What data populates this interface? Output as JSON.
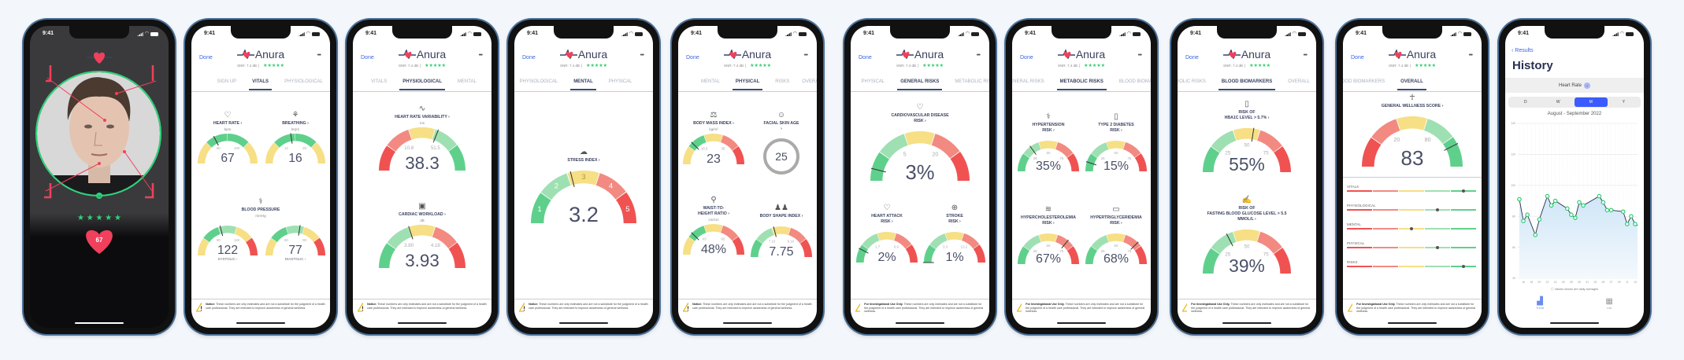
{
  "status_time": "9:41",
  "palette": {
    "red": "#f05252",
    "lightred": "#f28a82",
    "yellow": "#f6df85",
    "lightgreen": "#9fe0b2",
    "green": "#5fd08c",
    "accent": "#3b63e0",
    "ring": "#2ed47a",
    "heart": "#f0405c"
  },
  "scan": {
    "stars": "★ ★ ★ ★ ★",
    "heart_rate": "67",
    "progress": "15"
  },
  "header": {
    "done": "Done",
    "brand": "Anura",
    "snr": "SNR: 7.4 dB",
    "separator": "|",
    "stars": "★★★★★",
    "more": "•••"
  },
  "notices": {
    "notice": {
      "bold": "Notice:",
      "text": " These numbers are only estimates and are not a substitute for the judgment of a health care professional. They are intended to improve awareness of general wellness."
    },
    "investigational": {
      "bold": "For Investigational Use Only.",
      "text": " These numbers are only estimates and are not a substitute for the judgment of a health care professional. They are intended to improve awareness of general wellness."
    }
  },
  "screens": [
    {
      "tabs": [
        "SIGN UP",
        "VITALS",
        "PHYSIOLOGICAL"
      ],
      "active": 1,
      "notice": "notice",
      "groups": [
        {
          "icon": "stethoscope-icon",
          "glyph": "⚕",
          "title": "BLOOD PRESSURE",
          "unit": "mmHg"
        }
      ],
      "gauges": [
        {
          "icon": "heart-icon",
          "glyph": "♡",
          "title": "HEART RATE ›",
          "unit": "bpm",
          "value": "67",
          "ticks": [
            "60",
            "100"
          ],
          "level": 0.35,
          "colors": [
            "yellow",
            "green",
            "green",
            "yellow"
          ]
        },
        {
          "icon": "lungs-icon",
          "glyph": "⚘",
          "title": "BREATHING ›",
          "unit": "brpm",
          "value": "16",
          "ticks": [
            "12",
            "20"
          ],
          "level": 0.45,
          "colors": [
            "yellow",
            "green",
            "green",
            "yellow"
          ]
        },
        {
          "value": "122",
          "sublabel": "SYSTOLIC ›",
          "ticks": [
            "90",
            "140"
          ],
          "level": 0.42,
          "colors": [
            "yellow",
            "green",
            "lightgreen",
            "yellow",
            "red"
          ]
        },
        {
          "value": "77",
          "sublabel": "DIASTOLIC ›",
          "ticks": [
            "60",
            "90"
          ],
          "level": 0.55,
          "colors": [
            "yellow",
            "green",
            "lightgreen",
            "yellow",
            "red"
          ]
        }
      ]
    },
    {
      "tabs": [
        "VITALS",
        "PHYSIOLOGICAL",
        "MENTAL"
      ],
      "active": 1,
      "notice": "notice",
      "gauges": [
        {
          "icon": "hrv-icon",
          "glyph": "∿",
          "title": "HEART RATE VARIABILITY ›",
          "unit": "ms",
          "value": "38.3",
          "ticks": [
            "10.8",
            "51.5"
          ],
          "level": 0.62,
          "colors": [
            "red",
            "lightred",
            "yellow",
            "lightgreen",
            "green"
          ]
        },
        {
          "icon": "cardiac-workload-icon",
          "glyph": "▣",
          "title": "CARDIAC WORKLOAD ›",
          "unit": "dB",
          "value": "3.93",
          "ticks": [
            "3.80",
            "4.18"
          ],
          "level": 0.4,
          "colors": [
            "green",
            "lightgreen",
            "yellow",
            "lightred",
            "red"
          ]
        }
      ]
    },
    {
      "tabs": [
        "PHYSIOLOGICAL",
        "MENTAL",
        "PHYSICAL"
      ],
      "active": 1,
      "notice": "notice",
      "gauges": [
        {
          "icon": "brain-icon",
          "glyph": "☁",
          "title": "STRESS INDEX ›",
          "value": "3.2",
          "segment_labels": [
            "1",
            "2",
            "3",
            "4",
            "5"
          ],
          "level": 0.42,
          "colors": [
            "green",
            "lightgreen",
            "yellow",
            "lightred",
            "red"
          ]
        }
      ]
    },
    {
      "tabs": [
        "MENTAL",
        "PHYSICAL",
        "RISKS",
        "OVERALL"
      ],
      "active": 1,
      "notice": "notice",
      "skin_age": {
        "icon": "face-icon",
        "glyph": "☺",
        "title": "FACIAL SKIN AGE ›",
        "value": "25"
      },
      "gauges": [
        {
          "icon": "scale-icon",
          "glyph": "⚖",
          "title": "BODY MASS INDEX ›",
          "unit": "kg/m²",
          "value": "23",
          "ticks": [
            "18.5",
            "35"
          ],
          "level": 0.25,
          "colors": [
            "yellow",
            "green",
            "yellow",
            "lightred",
            "red"
          ]
        },
        {
          "icon": "waist-icon",
          "glyph": "⚲",
          "title": "WAIST-TO-\nHEIGHT RATIO ›",
          "unit": "cm/cm",
          "value": "48%",
          "ticks": [
            "43",
            "63"
          ],
          "level": 0.25,
          "colors": [
            "yellow",
            "green",
            "yellow",
            "lightred",
            "red"
          ]
        },
        {
          "icon": "body-shape-icon",
          "glyph": "♟♟",
          "title": "BODY SHAPE INDEX ›",
          "value": "7.75",
          "ticks": [
            "7.10",
            "9.10"
          ],
          "level": 0.42,
          "colors": [
            "green",
            "lightgreen",
            "yellow",
            "lightred",
            "red"
          ]
        }
      ]
    },
    {
      "tabs": [
        "PHYSICAL",
        "GENERAL RISKS",
        "METABOLIC RISKS"
      ],
      "active": 1,
      "notice": "investigational",
      "gauges": [
        {
          "icon": "heart-pulse-icon",
          "glyph": "♡",
          "title": "CARDIOVASCULAR DISEASE\nRISK ›",
          "value": "3%",
          "ticks": [
            "5",
            "20"
          ],
          "level": 0.08,
          "colors": [
            "green",
            "lightgreen",
            "yellow",
            "lightred",
            "red"
          ]
        },
        {
          "icon": "broken-heart-icon",
          "glyph": "♡",
          "title": "HEART ATTACK\nRISK ›",
          "value": "2%",
          "ticks": [
            "1.7",
            "6.6"
          ],
          "level": 0.15,
          "colors": [
            "green",
            "lightgreen",
            "yellow",
            "lightred",
            "red"
          ]
        },
        {
          "icon": "brain-stroke-icon",
          "glyph": "⊕",
          "title": "STROKE\nRISK ›",
          "value": "1%",
          "ticks": [
            "3.3",
            "13.2"
          ],
          "level": 0.0,
          "colors": [
            "green",
            "lightgreen",
            "yellow",
            "lightred",
            "red"
          ]
        }
      ]
    },
    {
      "tabs": [
        "GENERAL RISKS",
        "METABOLIC RISKS",
        "BLOOD BIOMARKERS"
      ],
      "active": 1,
      "notice": "investigational",
      "gauges": [
        {
          "icon": "hypertension-icon",
          "glyph": "⚕",
          "title": "HYPERTENSION\nRISK ›",
          "value": "35%",
          "ticks": [
            "25",
            "50",
            "75"
          ],
          "level": 0.3,
          "colors": [
            "green",
            "lightgreen",
            "yellow",
            "lightred",
            "red"
          ]
        },
        {
          "icon": "diabetes-icon",
          "glyph": "▯",
          "title": "TYPE 2 DIABETES\nRISK ›",
          "value": "15%",
          "ticks": [
            "25",
            "50",
            "75"
          ],
          "level": 0.1,
          "colors": [
            "green",
            "lightgreen",
            "yellow",
            "lightred",
            "red"
          ]
        },
        {
          "icon": "cholesterol-icon",
          "glyph": "≋",
          "title": "HYPERCHOLESTEROLEMIA\nRISK ›",
          "value": "67%",
          "ticks": [
            "25",
            "50",
            "75"
          ],
          "level": 0.72,
          "colors": [
            "green",
            "lightgreen",
            "yellow",
            "lightred",
            "red"
          ]
        },
        {
          "icon": "triglyceride-icon",
          "glyph": "▭",
          "title": "HYPERTRIGLYCERIDEMIA\nRISK ›",
          "value": "68%",
          "ticks": [
            "25",
            "50",
            "75"
          ],
          "level": 0.75,
          "colors": [
            "green",
            "lightgreen",
            "yellow",
            "lightred",
            "red"
          ]
        }
      ]
    },
    {
      "tabs": [
        "METABOLIC RISKS",
        "BLOOD BIOMARKERS",
        "OVERALL"
      ],
      "active": 1,
      "notice": "investigational",
      "gauges": [
        {
          "icon": "hba1c-icon",
          "glyph": "▯",
          "title": "RISK OF\nHBA1C LEVEL > 5.7% ›",
          "value": "55%",
          "ticks": [
            "25",
            "50",
            "75"
          ],
          "level": 0.55,
          "colors": [
            "green",
            "lightgreen",
            "yellow",
            "lightred",
            "red"
          ]
        },
        {
          "icon": "glucose-icon",
          "glyph": "✍",
          "title": "RISK OF\nFASTING BLOOD GLUCOSE LEVEL > 5.5 MMOL/L ›",
          "value": "39%",
          "ticks": [
            "25",
            "50",
            "75"
          ],
          "level": 0.35,
          "colors": [
            "green",
            "lightgreen",
            "yellow",
            "lightred",
            "red"
          ]
        }
      ]
    },
    {
      "tabs": [
        "METABOLIC RISKS",
        "BLOOD BIOMARKERS",
        "OVERALL"
      ],
      "active": 2,
      "notice": "investigational",
      "gauges": [
        {
          "icon": "person-icon",
          "glyph": "☥",
          "title": "GENERAL WELLNESS SCORE ›",
          "value": "83",
          "ticks": [
            "20",
            "80"
          ],
          "level": 0.85,
          "colors": [
            "red",
            "lightred",
            "yellow",
            "lightgreen",
            "green"
          ]
        }
      ],
      "bars": [
        {
          "label": "VITALS",
          "level": 0.9
        },
        {
          "label": "PHYSIOLOGICAL",
          "level": 0.7
        },
        {
          "label": "MENTAL",
          "level": 0.5
        },
        {
          "label": "PHYSICAL",
          "level": 0.7
        },
        {
          "label": "RISKS",
          "level": 0.9
        }
      ]
    }
  ],
  "history": {
    "back": "Results",
    "title": "History",
    "metric": "Heart Rate",
    "periods": [
      "D",
      "W",
      "M",
      "Y"
    ],
    "selected_period": 2,
    "range_label": "August - September 2022",
    "footnote": "ⓘ Values shown are daily averages",
    "tabbar": [
      {
        "label": "Trend",
        "icon": "trend-icon"
      },
      {
        "label": "List",
        "icon": "list-icon"
      }
    ],
    "chart_data": {
      "type": "line",
      "ylim": [
        40,
        140
      ],
      "yticks": [
        "40",
        "60",
        "80",
        "100",
        "120",
        "140"
      ],
      "xticks": [
        "16",
        "18",
        "20",
        "22",
        "24",
        "26",
        "28",
        "30",
        "01",
        "03",
        "05",
        "07",
        "09",
        "11",
        "13"
      ],
      "grid": true,
      "points": [
        {
          "x": "2022-08-15",
          "y": 91
        },
        {
          "x": "2022-08-16",
          "y": 77
        },
        {
          "x": "2022-08-17",
          "y": 81
        },
        {
          "x": "2022-08-19",
          "y": 68
        },
        {
          "x": "2022-08-20",
          "y": 78
        },
        {
          "x": "2022-08-22",
          "y": 93
        },
        {
          "x": "2022-08-23",
          "y": 87
        },
        {
          "x": "2022-08-24",
          "y": 90
        },
        {
          "x": "2022-08-27",
          "y": 85
        },
        {
          "x": "2022-08-28",
          "y": 81
        },
        {
          "x": "2022-08-29",
          "y": 79
        },
        {
          "x": "2022-08-30",
          "y": 89
        },
        {
          "x": "2022-08-31",
          "y": 87
        },
        {
          "x": "2022-09-04",
          "y": 93
        },
        {
          "x": "2022-09-05",
          "y": 89
        },
        {
          "x": "2022-09-06",
          "y": 84
        },
        {
          "x": "2022-09-07",
          "y": 84
        },
        {
          "x": "2022-09-10",
          "y": 83
        },
        {
          "x": "2022-09-11",
          "y": 75
        },
        {
          "x": "2022-09-12",
          "y": 80
        },
        {
          "x": "2022-09-13",
          "y": 75
        }
      ]
    }
  }
}
